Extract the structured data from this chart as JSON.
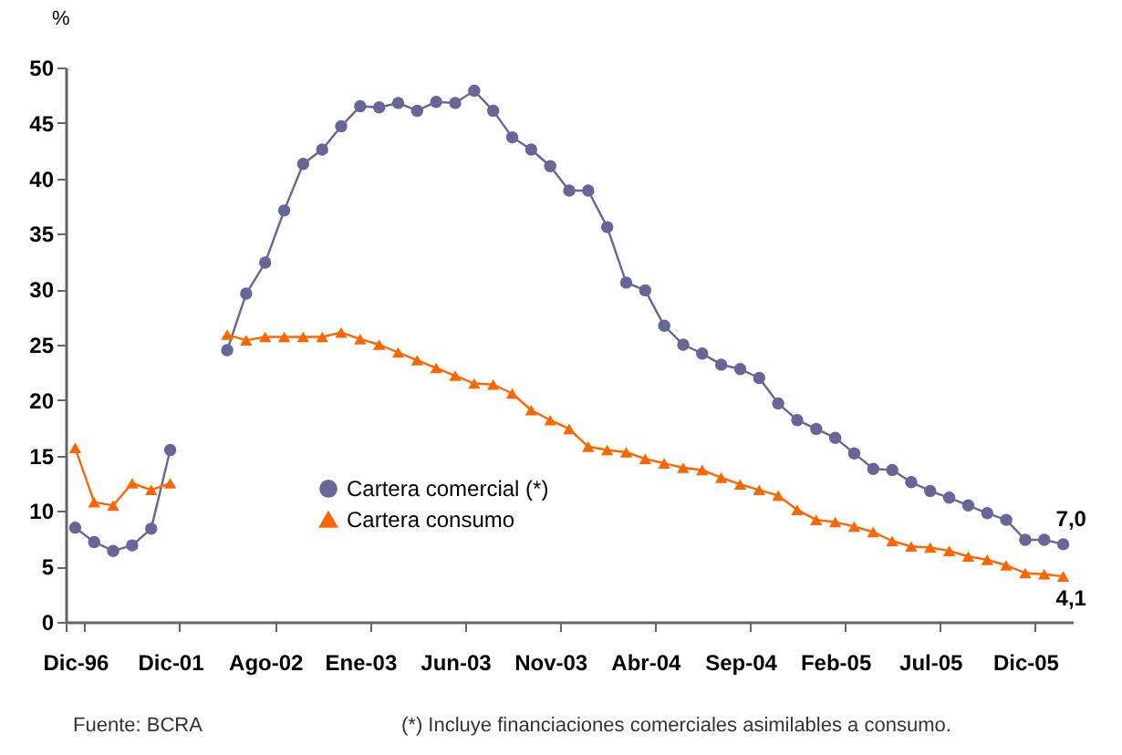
{
  "chart_data": {
    "type": "line",
    "ylabel": "%",
    "categories": [
      "Dic-96",
      null,
      null,
      null,
      null,
      "Dic-01",
      null,
      null,
      null,
      null,
      "Ago-02",
      null,
      null,
      null,
      null,
      "Ene-03",
      null,
      null,
      null,
      null,
      "Jun-03",
      null,
      null,
      null,
      null,
      "Nov-03",
      null,
      null,
      null,
      null,
      "Abr-04",
      null,
      null,
      null,
      null,
      "Sep-04",
      null,
      null,
      null,
      null,
      "Feb-05",
      null,
      null,
      null,
      null,
      "Jul-05",
      null,
      null,
      null,
      null,
      "Dic-05",
      null,
      null
    ],
    "series": [
      {
        "name": "Cartera comercial (*)",
        "color": "#666699",
        "marker": "circle",
        "values": [
          8.5,
          7.2,
          6.4,
          6.9,
          8.4,
          15.5,
          null,
          null,
          24.5,
          29.6,
          32.4,
          37.1,
          41.3,
          42.6,
          44.7,
          46.5,
          46.4,
          46.8,
          46.1,
          46.9,
          46.8,
          47.9,
          46.1,
          43.7,
          42.6,
          41.1,
          38.9,
          38.9,
          35.6,
          30.6,
          29.9,
          26.7,
          25.0,
          24.2,
          23.2,
          22.8,
          22.0,
          19.7,
          18.2,
          17.4,
          16.6,
          15.2,
          13.8,
          13.7,
          12.6,
          11.8,
          11.2,
          10.5,
          9.8,
          9.2,
          7.4,
          7.4,
          7.0
        ],
        "value_labels": [
          null,
          null,
          null,
          null,
          null,
          null,
          null,
          null,
          null,
          null,
          null,
          null,
          null,
          null,
          null,
          null,
          null,
          null,
          null,
          null,
          null,
          null,
          null,
          null,
          null,
          null,
          null,
          null,
          null,
          null,
          null,
          null,
          null,
          null,
          null,
          null,
          null,
          null,
          null,
          null,
          null,
          null,
          null,
          null,
          null,
          null,
          null,
          null,
          null,
          null,
          null,
          null,
          "7,0"
        ]
      },
      {
        "name": "Cartera consumo",
        "color": "#ff6600",
        "marker": "triangle",
        "values": [
          15.7,
          10.8,
          10.5,
          12.5,
          11.9,
          12.5,
          null,
          null,
          25.9,
          25.4,
          25.7,
          25.7,
          25.7,
          25.7,
          26.1,
          25.5,
          25.0,
          24.3,
          23.6,
          22.9,
          22.2,
          21.5,
          21.4,
          20.6,
          19.1,
          18.2,
          17.4,
          15.8,
          15.5,
          15.3,
          14.7,
          14.3,
          13.9,
          13.7,
          13.0,
          12.4,
          11.9,
          11.4,
          10.1,
          9.2,
          9.0,
          8.6,
          8.1,
          7.3,
          6.8,
          6.7,
          6.4,
          5.9,
          5.6,
          5.1,
          4.4,
          4.3,
          4.1
        ],
        "value_labels": [
          null,
          null,
          null,
          null,
          null,
          null,
          null,
          null,
          null,
          null,
          null,
          null,
          null,
          null,
          null,
          null,
          null,
          null,
          null,
          null,
          null,
          null,
          null,
          null,
          null,
          null,
          null,
          null,
          null,
          null,
          null,
          null,
          null,
          null,
          null,
          null,
          null,
          null,
          null,
          null,
          null,
          null,
          null,
          null,
          null,
          null,
          null,
          null,
          null,
          null,
          null,
          null,
          "4,1"
        ]
      }
    ],
    "ylim": [
      0,
      50
    ],
    "yticks": [
      0,
      5,
      10,
      15,
      20,
      25,
      30,
      35,
      40,
      45,
      50
    ],
    "grid": false,
    "legend": "bottom left",
    "annotations": [
      "Fuente: BCRA",
      "(*) Incluye financiaciones comerciales asimilables a consumo."
    ]
  }
}
